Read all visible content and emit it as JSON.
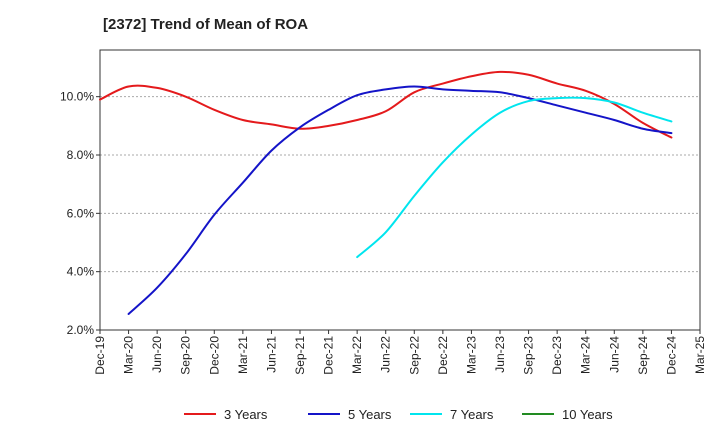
{
  "chart_data": {
    "type": "line",
    "title": "[2372]  Trend of Mean of ROA",
    "xlabel": "",
    "ylabel": "",
    "x_ticks": [
      "Dec-19",
      "Mar-20",
      "Jun-20",
      "Sep-20",
      "Dec-20",
      "Mar-21",
      "Jun-21",
      "Sep-21",
      "Dec-21",
      "Mar-22",
      "Jun-22",
      "Sep-22",
      "Dec-22",
      "Mar-23",
      "Jun-23",
      "Sep-23",
      "Dec-23",
      "Mar-24",
      "Jun-24",
      "Sep-24",
      "Dec-24",
      "Mar-25"
    ],
    "y_ticks": [
      "2.0%",
      "4.0%",
      "6.0%",
      "8.0%",
      "10.0%"
    ],
    "y_tick_values": [
      2,
      4,
      6,
      8,
      10
    ],
    "ylim": [
      2,
      11.6
    ],
    "grid": true,
    "legend_position": "bottom",
    "series": [
      {
        "name": "3 Years",
        "color": "#e41a1c",
        "values": [
          9.9,
          10.35,
          10.3,
          10.0,
          9.55,
          9.2,
          9.05,
          8.9,
          9.0,
          9.2,
          9.5,
          10.15,
          10.45,
          10.7,
          10.85,
          10.75,
          10.45,
          10.2,
          9.75,
          9.1,
          8.6,
          null
        ]
      },
      {
        "name": "5 Years",
        "color": "#1414c8",
        "values": [
          null,
          2.55,
          3.45,
          4.6,
          5.95,
          7.05,
          8.15,
          8.95,
          9.55,
          10.05,
          10.25,
          10.35,
          10.25,
          10.2,
          10.15,
          9.95,
          9.7,
          9.45,
          9.2,
          8.9,
          8.75,
          null
        ]
      },
      {
        "name": "7 Years",
        "color": "#00e5ee",
        "values": [
          null,
          null,
          null,
          null,
          null,
          null,
          null,
          null,
          null,
          4.5,
          5.35,
          6.6,
          7.75,
          8.7,
          9.45,
          9.85,
          9.95,
          9.95,
          9.8,
          9.45,
          9.15,
          null
        ]
      },
      {
        "name": "10 Years",
        "color": "#228b22",
        "values": []
      }
    ]
  }
}
